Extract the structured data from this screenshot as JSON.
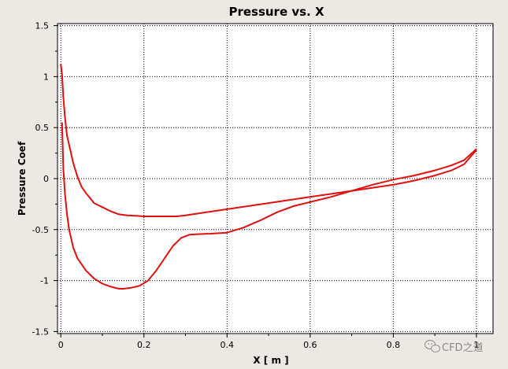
{
  "chart_data": {
    "type": "line",
    "title": "Pressure vs. X",
    "xlabel": "X [ m ]",
    "ylabel": "Pressure Coef",
    "xlim": [
      -0.008,
      1.04
    ],
    "ylim": [
      -1.52,
      1.52
    ],
    "xticks": [
      0,
      0.2,
      0.4,
      0.6,
      0.8,
      1
    ],
    "xtick_labels": [
      "0",
      "0.2",
      "0.4",
      "0.6",
      "0.8",
      "1"
    ],
    "yticks": [
      1.5,
      1,
      0.5,
      0,
      -0.5,
      -1,
      -1.5
    ],
    "ytick_labels": [
      "1.5",
      "1",
      "0.5",
      "0",
      "-0.5",
      "-1",
      "-1.5"
    ],
    "grid": true,
    "line_color": "#e01010",
    "series": [
      {
        "x": [
          0.0,
          0.003,
          0.006,
          0.01,
          0.015,
          0.02,
          0.03,
          0.04,
          0.05,
          0.06,
          0.07,
          0.08,
          0.1,
          0.12,
          0.14,
          0.16,
          0.18,
          0.2,
          0.22,
          0.24,
          0.26,
          0.28,
          0.3,
          0.35,
          0.4,
          0.5,
          0.6,
          0.7,
          0.8,
          0.85,
          0.9,
          0.94,
          0.97,
          1.0
        ],
        "y": [
          1.12,
          1.02,
          0.8,
          0.6,
          0.42,
          0.33,
          0.15,
          0.02,
          -0.08,
          -0.14,
          -0.19,
          -0.24,
          -0.28,
          -0.32,
          -0.35,
          -0.36,
          -0.365,
          -0.37,
          -0.37,
          -0.37,
          -0.37,
          -0.37,
          -0.36,
          -0.33,
          -0.3,
          -0.24,
          -0.18,
          -0.12,
          -0.06,
          -0.02,
          0.03,
          0.08,
          0.14,
          0.28
        ]
      },
      {
        "x": [
          0.003,
          0.006,
          0.01,
          0.015,
          0.02,
          0.03,
          0.04,
          0.06,
          0.08,
          0.1,
          0.12,
          0.14,
          0.15,
          0.17,
          0.19,
          0.21,
          0.23,
          0.25,
          0.27,
          0.29,
          0.31,
          0.33,
          0.36,
          0.4,
          0.44,
          0.48,
          0.52,
          0.56,
          0.6,
          0.65,
          0.7,
          0.75,
          0.8,
          0.85,
          0.9,
          0.94,
          0.97,
          1.0
        ],
        "y": [
          0.55,
          0.1,
          -0.15,
          -0.35,
          -0.5,
          -0.68,
          -0.78,
          -0.9,
          -0.98,
          -1.03,
          -1.06,
          -1.08,
          -1.08,
          -1.07,
          -1.05,
          -1.0,
          -0.9,
          -0.78,
          -0.66,
          -0.58,
          -0.55,
          -0.545,
          -0.54,
          -0.53,
          -0.48,
          -0.41,
          -0.33,
          -0.27,
          -0.23,
          -0.18,
          -0.12,
          -0.06,
          -0.01,
          0.03,
          0.08,
          0.13,
          0.18,
          0.29
        ]
      }
    ]
  }
}
